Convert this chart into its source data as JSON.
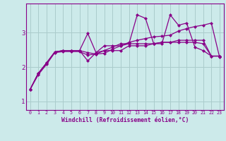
{
  "xlabel": "Windchill (Refroidissement éolien,°C)",
  "bg_color": "#cceaea",
  "grid_color": "#aacccc",
  "line_color": "#880088",
  "marker": "D",
  "marker_size": 2.0,
  "line_width": 0.9,
  "xlim": [
    -0.5,
    23.5
  ],
  "ylim": [
    0.75,
    3.85
  ],
  "yticks": [
    1,
    2,
    3
  ],
  "xticks": [
    0,
    1,
    2,
    3,
    4,
    5,
    6,
    7,
    8,
    9,
    10,
    11,
    12,
    13,
    14,
    15,
    16,
    17,
    18,
    19,
    20,
    21,
    22,
    23
  ],
  "series": [
    [
      1.35,
      1.78,
      2.08,
      2.42,
      2.45,
      2.45,
      2.45,
      2.35,
      2.38,
      2.4,
      2.52,
      2.62,
      2.72,
      2.78,
      2.83,
      2.88,
      2.9,
      2.93,
      3.05,
      3.12,
      3.18,
      3.22,
      3.28,
      2.28
    ],
    [
      1.35,
      1.82,
      2.12,
      2.44,
      2.48,
      2.48,
      2.48,
      2.18,
      2.42,
      2.48,
      2.58,
      2.68,
      2.68,
      3.52,
      3.42,
      2.68,
      2.68,
      3.52,
      3.22,
      3.28,
      2.58,
      2.48,
      2.32,
      2.32
    ],
    [
      1.35,
      1.82,
      2.12,
      2.44,
      2.48,
      2.48,
      2.48,
      2.42,
      2.38,
      2.48,
      2.48,
      2.48,
      2.62,
      2.62,
      2.62,
      2.68,
      2.72,
      2.72,
      2.78,
      2.78,
      2.78,
      2.78,
      2.32,
      2.32
    ],
    [
      1.35,
      1.82,
      2.12,
      2.44,
      2.48,
      2.48,
      2.48,
      2.98,
      2.42,
      2.62,
      2.62,
      2.62,
      2.68,
      2.68,
      2.68,
      2.68,
      2.72,
      2.72,
      2.72,
      2.72,
      2.72,
      2.68,
      2.32,
      2.32
    ]
  ]
}
